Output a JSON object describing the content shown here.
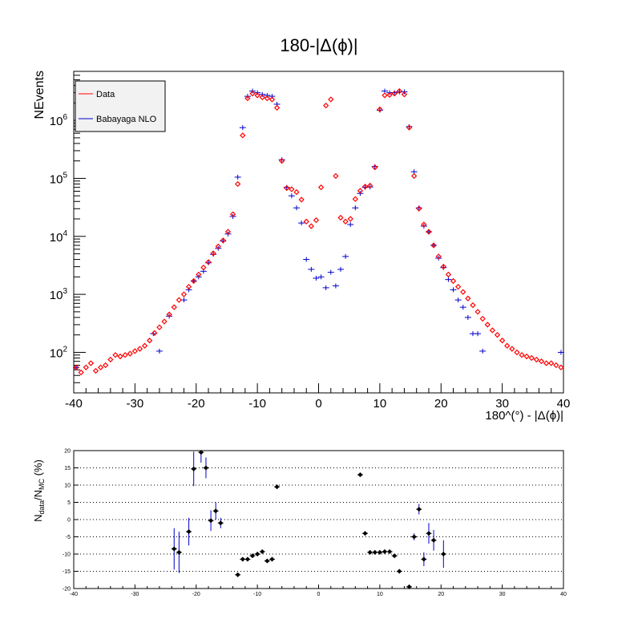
{
  "chart_data": [
    {
      "type": "scatter",
      "title": "180-|Δ(ϕ)|",
      "xlabel": "180^(°) - |Δ(ϕ)|",
      "ylabel": "NEvents",
      "xlim": [
        -40,
        40
      ],
      "ylim": [
        20,
        7000000
      ],
      "yscale": "log",
      "x_ticks": [
        -40,
        -30,
        -20,
        -10,
        0,
        10,
        20,
        30,
        40
      ],
      "y_ticks": [
        {
          "value": 100,
          "base": "10",
          "exp": "2"
        },
        {
          "value": 1000,
          "base": "10",
          "exp": "3"
        },
        {
          "value": 10000,
          "base": "10",
          "exp": "4"
        },
        {
          "value": 100000,
          "base": "10",
          "exp": "5"
        },
        {
          "value": 1000000,
          "base": "10",
          "exp": "6"
        }
      ],
      "legend": {
        "placement": "top-left",
        "entries": [
          "Data",
          "Babayaga NLO"
        ]
      },
      "series": [
        {
          "name": "Data",
          "color": "#ff0000",
          "marker": "open-diamond",
          "x": [
            -39.6,
            -38.8,
            -38,
            -37.2,
            -36.4,
            -35.6,
            -34.8,
            -34,
            -33.2,
            -32.4,
            -31.6,
            -30.8,
            -30,
            -29.2,
            -28.4,
            -27.6,
            -26.8,
            -26,
            -25.2,
            -24.4,
            -23.6,
            -22.8,
            -22,
            -21.2,
            -20.4,
            -19.6,
            -18.8,
            -18,
            -17.2,
            -16.4,
            -15.6,
            -14.8,
            -14,
            -13.2,
            -12.4,
            -11.6,
            -10.8,
            -10,
            -9.2,
            -8.4,
            -7.6,
            -6.8,
            -6,
            -5.2,
            -4.4,
            -3.6,
            -2.8,
            -2,
            -1.2,
            -0.4,
            0.4,
            1.2,
            2,
            2.8,
            3.6,
            4.4,
            5.2,
            6,
            6.8,
            7.6,
            8.4,
            9.2,
            10,
            10.8,
            11.6,
            12.4,
            13.2,
            14,
            14.8,
            15.6,
            16.4,
            17.2,
            18,
            18.8,
            19.6,
            20.4,
            21.2,
            22,
            22.8,
            23.6,
            24.4,
            25.2,
            26,
            26.8,
            27.6,
            28.4,
            29.2,
            30,
            30.8,
            31.6,
            32.4,
            33.2,
            34,
            34.8,
            35.6,
            36.4,
            37.2,
            38,
            38.8,
            39.6
          ],
          "y": [
            55,
            45,
            55,
            65,
            48,
            55,
            60,
            75,
            90,
            85,
            90,
            95,
            105,
            115,
            130,
            160,
            215,
            270,
            340,
            450,
            600,
            800,
            1000,
            1350,
            1700,
            2200,
            2900,
            3600,
            5100,
            6700,
            8500,
            12000,
            24000,
            80000,
            550000,
            2400000,
            2900000,
            2700000,
            2500000,
            2400000,
            2300000,
            1650000,
            200000,
            68000,
            65000,
            58000,
            43000,
            18000,
            15000,
            19000,
            70000,
            1800000,
            2300000,
            110000,
            21000,
            18000,
            20000,
            44000,
            61000,
            72000,
            75000,
            155000,
            1550000,
            2700000,
            2750000,
            2900000,
            3200000,
            2800000,
            750000,
            110000,
            30000,
            16000,
            12000,
            7000,
            4500,
            3000,
            2200,
            1700,
            1350,
            1100,
            850,
            650,
            500,
            380,
            300,
            240,
            200,
            160,
            130,
            115,
            100,
            90,
            85,
            80,
            75,
            70,
            65,
            65,
            60,
            55
          ],
          "y_error": [
            null,
            null,
            null,
            null,
            null,
            null,
            null,
            null,
            null,
            null,
            null,
            null,
            null,
            null,
            null,
            null,
            null,
            null,
            null,
            null,
            null,
            null,
            null,
            null,
            null,
            null,
            null,
            null,
            null,
            null,
            null,
            null,
            null,
            null,
            null,
            null,
            null,
            null,
            null,
            null,
            null,
            null,
            null,
            null,
            null,
            null,
            null,
            null,
            null,
            null,
            null,
            null,
            null,
            null,
            null,
            null,
            null,
            null,
            null,
            null,
            null,
            null,
            null,
            null,
            null,
            null,
            null,
            null,
            null,
            null,
            null,
            null,
            null,
            null,
            null,
            null,
            null,
            null,
            null,
            null,
            null,
            null,
            null,
            null,
            null,
            null,
            null,
            null,
            null,
            null,
            null,
            null,
            null,
            null,
            null,
            null,
            null,
            null,
            null,
            null
          ]
        },
        {
          "name": "Babayaga NLO",
          "color": "#0000cc",
          "marker": "cross",
          "x": [
            -39.6,
            -27,
            -26,
            -24.4,
            -22,
            -21.2,
            -20.4,
            -19.6,
            -18.8,
            -18,
            -17.2,
            -16.4,
            -15.6,
            -14.8,
            -14,
            -13.2,
            -12.4,
            -11.6,
            -10.8,
            -10,
            -9.2,
            -8.4,
            -7.6,
            -6.8,
            -6,
            -5.2,
            -4.4,
            -3.6,
            -2.8,
            -2,
            -1.2,
            -0.4,
            0.4,
            1.2,
            2,
            2.8,
            3.6,
            4.4,
            5.2,
            6,
            6.8,
            7.6,
            8.4,
            9.2,
            10,
            10.8,
            11.6,
            12.4,
            13.2,
            14,
            14.8,
            15.6,
            16.4,
            17.2,
            18,
            18.8,
            19.6,
            20.4,
            21.2,
            22,
            22.8,
            23.6,
            24.4,
            25.2,
            26,
            26.8,
            39.6
          ],
          "y": [
            55,
            210,
            105,
            420,
            800,
            1200,
            1700,
            2000,
            2500,
            3500,
            4900,
            6200,
            8300,
            11000,
            22000,
            105000,
            750000,
            2600000,
            3200000,
            3000000,
            2800000,
            2700000,
            2600000,
            1900000,
            210000,
            70000,
            50000,
            31000,
            17000,
            4000,
            2700,
            1900,
            2000,
            1300,
            2400,
            1400,
            2700,
            4500,
            16000,
            31000,
            55000,
            70000,
            71000,
            160000,
            1500000,
            3200000,
            3000000,
            3000000,
            3100000,
            3100000,
            780000,
            130000,
            31000,
            15000,
            12000,
            7000,
            4200,
            2900,
            1800,
            1200,
            800,
            600,
            400,
            210,
            210,
            105,
            100
          ]
        }
      ]
    },
    {
      "type": "scatter",
      "ylabel": "N_data/N_MC (%)",
      "ylabel_main": "N",
      "ylabel_sub1": "data",
      "ylabel_mid": "/N",
      "ylabel_sub2": "MC",
      "ylabel_tail": " (%)",
      "xlim": [
        -40,
        40
      ],
      "ylim": [
        -20,
        20
      ],
      "x_ticks": [
        -40,
        -30,
        -20,
        -10,
        0,
        10,
        20,
        30,
        40
      ],
      "y_ticks": [
        -20,
        -15,
        -10,
        -5,
        0,
        5,
        10,
        15,
        20
      ],
      "grid": "horizontal-dotted",
      "series": [
        {
          "name": "",
          "color": "#000000",
          "marker": "filled-diamond",
          "x": [
            -23.6,
            -22.8,
            -21.2,
            -20.4,
            -19.2,
            -18.4,
            -17.6,
            -16.8,
            -16,
            -13.2,
            -12.4,
            -11.6,
            -10.8,
            -10,
            -9.2,
            -8.4,
            -7.6,
            -6.8,
            6.8,
            7.6,
            8.4,
            9.2,
            10,
            10.8,
            11.6,
            12.4,
            13.2,
            14.8,
            15.6,
            16.4,
            17.2,
            18,
            18.8,
            20.4
          ],
          "y": [
            -8.5,
            -9.5,
            -3.5,
            14.7,
            19.5,
            15,
            -0.3,
            2.5,
            -1,
            -16,
            -11.5,
            -11.5,
            -10.5,
            -10,
            -9.3,
            -12,
            -11.5,
            9.5,
            13,
            -4,
            -9.5,
            -9.5,
            -9.5,
            -9.3,
            -9.3,
            -10.5,
            -15,
            -19.5,
            -5,
            3,
            -11.5,
            -4,
            -6,
            -10
          ],
          "y_error": [
            6,
            6,
            4,
            5,
            3,
            3,
            3,
            2.5,
            1.5,
            0.5,
            0.5,
            0.5,
            0.5,
            0.5,
            0.5,
            0.5,
            0.5,
            0.5,
            0.5,
            0.5,
            0.5,
            0.5,
            0.5,
            0.5,
            0.5,
            0.5,
            0.5,
            0.5,
            1,
            1.5,
            2,
            3,
            3,
            4
          ]
        }
      ]
    }
  ]
}
